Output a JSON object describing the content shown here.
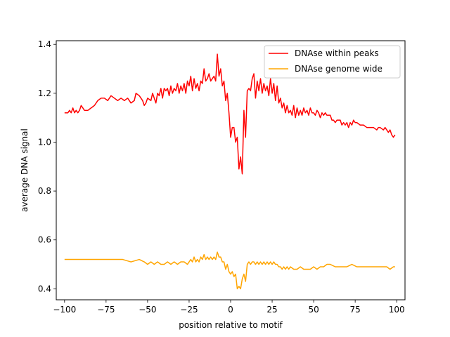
{
  "chart_data": {
    "type": "line",
    "title": "",
    "xlabel": "position relative to motif",
    "ylabel": "average DNA signal",
    "xlim": [
      -105,
      105
    ],
    "ylim": [
      0.355,
      1.415
    ],
    "xticks": [
      -100,
      -75,
      -50,
      -25,
      0,
      25,
      50,
      75,
      100
    ],
    "yticks": [
      0.4,
      0.6,
      0.8,
      1.0,
      1.2,
      1.4
    ],
    "ytick_labels": [
      "0.4",
      "0.6",
      "0.8",
      "1.0",
      "1.2",
      "1.4"
    ],
    "grid": false,
    "legend_position": "top-right",
    "series": [
      {
        "name": "DNAse within peaks",
        "color": "#ff0000",
        "points": [
          [
            -100,
            1.12
          ],
          [
            -98,
            1.12
          ],
          [
            -97,
            1.13
          ],
          [
            -96,
            1.12
          ],
          [
            -95,
            1.14
          ],
          [
            -94,
            1.12
          ],
          [
            -93,
            1.13
          ],
          [
            -92,
            1.12
          ],
          [
            -91,
            1.13
          ],
          [
            -90,
            1.15
          ],
          [
            -89,
            1.14
          ],
          [
            -88,
            1.13
          ],
          [
            -86,
            1.13
          ],
          [
            -84,
            1.14
          ],
          [
            -82,
            1.15
          ],
          [
            -80,
            1.17
          ],
          [
            -78,
            1.18
          ],
          [
            -76,
            1.18
          ],
          [
            -74,
            1.17
          ],
          [
            -72,
            1.19
          ],
          [
            -70,
            1.18
          ],
          [
            -68,
            1.17
          ],
          [
            -66,
            1.18
          ],
          [
            -64,
            1.17
          ],
          [
            -62,
            1.18
          ],
          [
            -60,
            1.16
          ],
          [
            -58,
            1.17
          ],
          [
            -57,
            1.2
          ],
          [
            -55,
            1.19
          ],
          [
            -53,
            1.17
          ],
          [
            -52,
            1.15
          ],
          [
            -51,
            1.16
          ],
          [
            -50,
            1.18
          ],
          [
            -48,
            1.17
          ],
          [
            -47,
            1.2
          ],
          [
            -46,
            1.18
          ],
          [
            -45,
            1.16
          ],
          [
            -44,
            1.2
          ],
          [
            -43,
            1.19
          ],
          [
            -42,
            1.22
          ],
          [
            -41,
            1.18
          ],
          [
            -40,
            1.22
          ],
          [
            -39,
            1.21
          ],
          [
            -38,
            1.22
          ],
          [
            -37,
            1.19
          ],
          [
            -36,
            1.23
          ],
          [
            -35,
            1.2
          ],
          [
            -34,
            1.22
          ],
          [
            -33,
            1.21
          ],
          [
            -32,
            1.24
          ],
          [
            -31,
            1.2
          ],
          [
            -30,
            1.23
          ],
          [
            -29,
            1.21
          ],
          [
            -28,
            1.24
          ],
          [
            -27,
            1.2
          ],
          [
            -26,
            1.25
          ],
          [
            -25,
            1.23
          ],
          [
            -24,
            1.27
          ],
          [
            -23,
            1.21
          ],
          [
            -22,
            1.26
          ],
          [
            -21,
            1.22
          ],
          [
            -20,
            1.24
          ],
          [
            -19,
            1.21
          ],
          [
            -18,
            1.25
          ],
          [
            -17,
            1.24
          ],
          [
            -16,
            1.3
          ],
          [
            -15,
            1.25
          ],
          [
            -14,
            1.26
          ],
          [
            -13,
            1.28
          ],
          [
            -12,
            1.25
          ],
          [
            -11,
            1.26
          ],
          [
            -10,
            1.27
          ],
          [
            -9,
            1.25
          ],
          [
            -8,
            1.36
          ],
          [
            -7,
            1.27
          ],
          [
            -6,
            1.3
          ],
          [
            -5,
            1.23
          ],
          [
            -4,
            1.25
          ],
          [
            -3,
            1.17
          ],
          [
            -2,
            1.2
          ],
          [
            -1,
            1.12
          ],
          [
            0,
            1.02
          ],
          [
            1,
            1.06
          ],
          [
            2,
            1.06
          ],
          [
            3,
            1.0
          ],
          [
            4,
            1.02
          ],
          [
            5,
            0.89
          ],
          [
            6,
            0.94
          ],
          [
            7,
            0.87
          ],
          [
            8,
            1.13
          ],
          [
            9,
            1.02
          ],
          [
            10,
            1.21
          ],
          [
            11,
            1.22
          ],
          [
            12,
            1.21
          ],
          [
            13,
            1.26
          ],
          [
            14,
            1.28
          ],
          [
            15,
            1.18
          ],
          [
            16,
            1.25
          ],
          [
            17,
            1.21
          ],
          [
            18,
            1.26
          ],
          [
            19,
            1.2
          ],
          [
            20,
            1.24
          ],
          [
            21,
            1.21
          ],
          [
            22,
            1.23
          ],
          [
            23,
            1.19
          ],
          [
            24,
            1.26
          ],
          [
            25,
            1.2
          ],
          [
            26,
            1.24
          ],
          [
            27,
            1.17
          ],
          [
            28,
            1.23
          ],
          [
            29,
            1.16
          ],
          [
            30,
            1.18
          ],
          [
            31,
            1.14
          ],
          [
            32,
            1.16
          ],
          [
            33,
            1.12
          ],
          [
            34,
            1.15
          ],
          [
            35,
            1.12
          ],
          [
            36,
            1.13
          ],
          [
            37,
            1.11
          ],
          [
            38,
            1.15
          ],
          [
            39,
            1.1
          ],
          [
            40,
            1.14
          ],
          [
            41,
            1.11
          ],
          [
            42,
            1.13
          ],
          [
            43,
            1.11
          ],
          [
            44,
            1.14
          ],
          [
            45,
            1.12
          ],
          [
            46,
            1.13
          ],
          [
            47,
            1.11
          ],
          [
            48,
            1.14
          ],
          [
            49,
            1.12
          ],
          [
            50,
            1.12
          ],
          [
            51,
            1.11
          ],
          [
            52,
            1.13
          ],
          [
            53,
            1.12
          ],
          [
            54,
            1.1
          ],
          [
            55,
            1.12
          ],
          [
            56,
            1.11
          ],
          [
            57,
            1.12
          ],
          [
            58,
            1.11
          ],
          [
            60,
            1.11
          ],
          [
            61,
            1.09
          ],
          [
            62,
            1.09
          ],
          [
            63,
            1.08
          ],
          [
            64,
            1.09
          ],
          [
            66,
            1.09
          ],
          [
            67,
            1.07
          ],
          [
            68,
            1.08
          ],
          [
            69,
            1.07
          ],
          [
            70,
            1.08
          ],
          [
            71,
            1.06
          ],
          [
            72,
            1.08
          ],
          [
            73,
            1.07
          ],
          [
            74,
            1.09
          ],
          [
            75,
            1.08
          ],
          [
            76,
            1.08
          ],
          [
            78,
            1.07
          ],
          [
            80,
            1.07
          ],
          [
            82,
            1.06
          ],
          [
            84,
            1.06
          ],
          [
            86,
            1.06
          ],
          [
            88,
            1.05
          ],
          [
            89,
            1.06
          ],
          [
            90,
            1.06
          ],
          [
            92,
            1.05
          ],
          [
            93,
            1.06
          ],
          [
            94,
            1.05
          ],
          [
            95,
            1.04
          ],
          [
            96,
            1.05
          ],
          [
            97,
            1.03
          ],
          [
            98,
            1.02
          ],
          [
            99,
            1.03
          ]
        ]
      },
      {
        "name": "DNAse genome wide",
        "color": "#ffa500",
        "points": [
          [
            -100,
            0.52
          ],
          [
            -95,
            0.52
          ],
          [
            -90,
            0.52
          ],
          [
            -85,
            0.52
          ],
          [
            -80,
            0.52
          ],
          [
            -76,
            0.52
          ],
          [
            -74,
            0.52
          ],
          [
            -70,
            0.52
          ],
          [
            -65,
            0.52
          ],
          [
            -60,
            0.51
          ],
          [
            -55,
            0.52
          ],
          [
            -52,
            0.51
          ],
          [
            -50,
            0.5
          ],
          [
            -48,
            0.51
          ],
          [
            -46,
            0.5
          ],
          [
            -44,
            0.51
          ],
          [
            -42,
            0.5
          ],
          [
            -40,
            0.5
          ],
          [
            -38,
            0.51
          ],
          [
            -36,
            0.5
          ],
          [
            -34,
            0.51
          ],
          [
            -32,
            0.5
          ],
          [
            -30,
            0.51
          ],
          [
            -28,
            0.51
          ],
          [
            -26,
            0.5
          ],
          [
            -25,
            0.51
          ],
          [
            -24,
            0.52
          ],
          [
            -23,
            0.51
          ],
          [
            -22,
            0.53
          ],
          [
            -21,
            0.51
          ],
          [
            -20,
            0.52
          ],
          [
            -19,
            0.51
          ],
          [
            -18,
            0.53
          ],
          [
            -17,
            0.52
          ],
          [
            -16,
            0.54
          ],
          [
            -15,
            0.52
          ],
          [
            -14,
            0.53
          ],
          [
            -13,
            0.52
          ],
          [
            -12,
            0.53
          ],
          [
            -11,
            0.52
          ],
          [
            -10,
            0.53
          ],
          [
            -9,
            0.52
          ],
          [
            -8,
            0.55
          ],
          [
            -7,
            0.53
          ],
          [
            -6,
            0.53
          ],
          [
            -5,
            0.51
          ],
          [
            -4,
            0.51
          ],
          [
            -3,
            0.48
          ],
          [
            -2,
            0.5
          ],
          [
            -1,
            0.47
          ],
          [
            0,
            0.46
          ],
          [
            1,
            0.47
          ],
          [
            2,
            0.45
          ],
          [
            3,
            0.46
          ],
          [
            4,
            0.4
          ],
          [
            5,
            0.41
          ],
          [
            6,
            0.4
          ],
          [
            7,
            0.44
          ],
          [
            8,
            0.46
          ],
          [
            9,
            0.43
          ],
          [
            10,
            0.5
          ],
          [
            11,
            0.51
          ],
          [
            12,
            0.5
          ],
          [
            13,
            0.51
          ],
          [
            14,
            0.51
          ],
          [
            15,
            0.5
          ],
          [
            16,
            0.51
          ],
          [
            17,
            0.5
          ],
          [
            18,
            0.51
          ],
          [
            19,
            0.5
          ],
          [
            20,
            0.51
          ],
          [
            21,
            0.5
          ],
          [
            22,
            0.51
          ],
          [
            23,
            0.5
          ],
          [
            24,
            0.51
          ],
          [
            25,
            0.5
          ],
          [
            26,
            0.51
          ],
          [
            27,
            0.5
          ],
          [
            28,
            0.5
          ],
          [
            29,
            0.49
          ],
          [
            30,
            0.49
          ],
          [
            31,
            0.48
          ],
          [
            32,
            0.49
          ],
          [
            33,
            0.48
          ],
          [
            34,
            0.49
          ],
          [
            35,
            0.48
          ],
          [
            36,
            0.49
          ],
          [
            38,
            0.48
          ],
          [
            40,
            0.48
          ],
          [
            42,
            0.49
          ],
          [
            44,
            0.48
          ],
          [
            46,
            0.48
          ],
          [
            48,
            0.48
          ],
          [
            50,
            0.49
          ],
          [
            52,
            0.48
          ],
          [
            54,
            0.49
          ],
          [
            56,
            0.49
          ],
          [
            58,
            0.5
          ],
          [
            60,
            0.5
          ],
          [
            63,
            0.49
          ],
          [
            66,
            0.49
          ],
          [
            70,
            0.49
          ],
          [
            73,
            0.5
          ],
          [
            76,
            0.49
          ],
          [
            80,
            0.49
          ],
          [
            83,
            0.49
          ],
          [
            86,
            0.49
          ],
          [
            90,
            0.49
          ],
          [
            94,
            0.49
          ],
          [
            96,
            0.48
          ],
          [
            98,
            0.49
          ],
          [
            99,
            0.49
          ]
        ]
      }
    ]
  }
}
